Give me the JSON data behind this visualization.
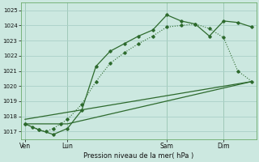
{
  "bg_color": "#cce8e0",
  "grid_color": "#aacfc8",
  "line_color": "#2d6a2d",
  "title": "Pression niveau de la mer( hPa )",
  "ylim": [
    1016.5,
    1025.5
  ],
  "yticks": [
    1017,
    1018,
    1019,
    1020,
    1021,
    1022,
    1023,
    1024,
    1025
  ],
  "xtick_labels": [
    "Ven",
    "Lun",
    "Sam",
    "Dim"
  ],
  "xtick_positions": [
    0,
    3,
    10,
    14
  ],
  "vline_positions": [
    0,
    3,
    10,
    14
  ],
  "series1_dotted": {
    "x": [
      0,
      0.5,
      1,
      1.5,
      2,
      2.5,
      3,
      4,
      5,
      6,
      7,
      8,
      9,
      10,
      11,
      12,
      13,
      14,
      15,
      16
    ],
    "y": [
      1017.5,
      1017.3,
      1017.1,
      1017.0,
      1017.2,
      1017.5,
      1017.8,
      1018.8,
      1020.3,
      1021.5,
      1022.2,
      1022.8,
      1023.3,
      1023.9,
      1024.0,
      1024.1,
      1023.8,
      1023.2,
      1021.0,
      1020.3
    ]
  },
  "series2_solid": {
    "x": [
      0,
      1,
      2,
      3,
      4,
      5,
      6,
      7,
      8,
      9,
      10,
      11,
      12,
      13,
      14,
      15,
      16
    ],
    "y": [
      1017.5,
      1017.1,
      1016.8,
      1017.2,
      1018.4,
      1021.3,
      1022.3,
      1022.8,
      1023.3,
      1023.7,
      1024.7,
      1024.3,
      1024.1,
      1023.3,
      1024.3,
      1024.2,
      1023.9
    ]
  },
  "series3_diagonal": {
    "x": [
      0,
      3,
      16
    ],
    "y": [
      1017.5,
      1017.5,
      1020.3
    ]
  },
  "series4_gentle": {
    "x": [
      0,
      16
    ],
    "y": [
      1017.8,
      1020.3
    ]
  },
  "xlim": [
    -0.3,
    16.3
  ],
  "figsize": [
    3.2,
    2.0
  ],
  "dpi": 100
}
